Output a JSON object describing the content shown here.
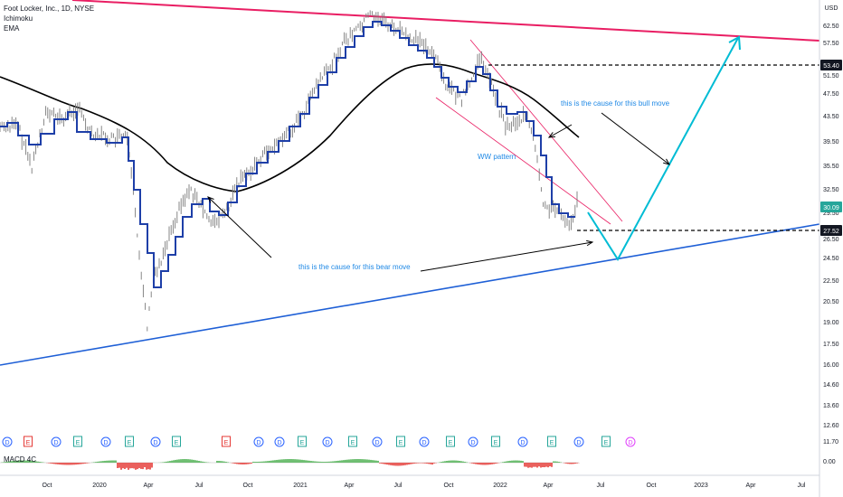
{
  "legend": {
    "symbol": "Foot Locker, Inc., 1D, NYSE",
    "ind1": "Ichimoku",
    "ind2": "EMA"
  },
  "macd_label": "MACD 4C",
  "colors": {
    "resistance": "#e91e63",
    "support": "#1e5fd6",
    "ichimoku": "#1e3fa8",
    "ema": "#000000",
    "projection": "#00bcd4",
    "annotation": "#1e88e5",
    "macd_pos": "#4caf50",
    "macd_neg": "#e53935"
  },
  "chart_data": {
    "type": "line",
    "title": "Foot Locker, Inc., 1D, NYSE",
    "xlabel": "",
    "ylabel": "USD",
    "y_axis": {
      "unit": "USD",
      "scale": "log",
      "ticks": [
        62.5,
        57.5,
        51.5,
        47.5,
        43.5,
        39.5,
        35.5,
        32.5,
        29.5,
        26.5,
        24.5,
        22.5,
        20.5,
        19.0,
        17.5,
        16.0,
        14.6,
        13.6,
        12.6,
        11.7,
        0.0
      ],
      "tick_labels": [
        "62.50",
        "57.50",
        "51.50",
        "47.50",
        "43.50",
        "39.50",
        "35.50",
        "32.50",
        "29.50",
        "26.50",
        "24.50",
        "22.50",
        "20.50",
        "19.00",
        "17.50",
        "16.00",
        "14.60",
        "13.60",
        "12.60",
        "11.70",
        "0.00"
      ]
    },
    "x_tick_labels": [
      "Oct",
      "2020",
      "Apr",
      "Jul",
      "Oct",
      "2021",
      "Apr",
      "Jul",
      "Oct",
      "2022",
      "Apr",
      "Jul",
      "Oct",
      "2023",
      "Apr",
      "Jul"
    ],
    "price_labels": [
      {
        "value": "53.40",
        "role": "resistance-level"
      },
      {
        "value": "30.09",
        "role": "last-price"
      },
      {
        "value": "27.52",
        "role": "support-level"
      }
    ],
    "price_series": {
      "name": "",
      "x": [
        "2019-08",
        "2019-10",
        "2019-12",
        "2020-01",
        "2020-02",
        "2020-03",
        "2020-04",
        "2020-05",
        "2020-06",
        "2020-07",
        "2020-08",
        "2020-09",
        "2020-10",
        "2020-11",
        "2020-12",
        "2021-01",
        "2021-02",
        "2021-03",
        "2021-04",
        "2021-05",
        "2021-06",
        "2021-07",
        "2021-08",
        "2021-09",
        "2021-10",
        "2021-11",
        "2021-12",
        "2022-01",
        "2022-02",
        "2022-03",
        "2022-04",
        "2022-05",
        "2022-06"
      ],
      "values": [
        42.0,
        40.5,
        40.0,
        39.5,
        36.0,
        20.0,
        23.5,
        28.0,
        31.0,
        30.0,
        28.0,
        32.0,
        36.0,
        41.0,
        42.0,
        47.0,
        53.0,
        56.5,
        58.5,
        62.5,
        60.5,
        58.0,
        55.5,
        49.0,
        45.0,
        47.5,
        49.0,
        45.0,
        43.0,
        30.5,
        30.0,
        29.0,
        30.1
      ]
    },
    "annotations": [
      "this is the cause for this bull move",
      "WW pattern",
      "this is the cause for this bear move"
    ],
    "event_markers": [
      "D",
      "E",
      "D",
      "E",
      "D",
      "E",
      "D",
      "E",
      "E",
      "D",
      "D",
      "E",
      "D",
      "E",
      "D",
      "E",
      "D",
      "E",
      "D",
      "E",
      "D",
      "E",
      "D",
      "E",
      "D",
      "E"
    ],
    "grid": false,
    "legend_position": "top-left"
  }
}
